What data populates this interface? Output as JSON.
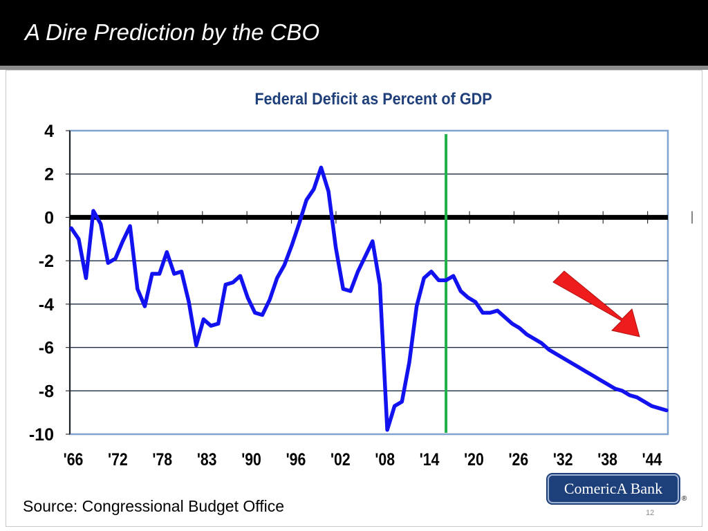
{
  "slide": {
    "title": "A Dire Prediction by the CBO",
    "source": "Source: Congressional Budget Office",
    "page_number": "12",
    "logo_text": "ComericA Bank",
    "logo_registered": "®"
  },
  "colors": {
    "line": "#1212f0",
    "zero_line": "#000000",
    "divider": "#22b04b",
    "arrow": "#ee1c1c",
    "axis_text": "#000000",
    "title_text": "#1f3f7a",
    "plot_border": "#7fa3cc",
    "grid": "#1a2a44"
  },
  "chart_data": {
    "type": "line",
    "title": "Federal Deficit as Percent of GDP",
    "xlabel": "",
    "ylabel": "",
    "ylim": [
      -10,
      4
    ],
    "xlim": [
      1965.8,
      2047.2
    ],
    "yticks": [
      4,
      2,
      0,
      -2,
      -4,
      -6,
      -8,
      -10
    ],
    "xtick_labels": [
      "'66",
      "'72",
      "'78",
      "'83",
      "'90",
      "'96",
      "'02",
      "'08",
      "'14",
      "'20",
      "'26",
      "'32",
      "'38",
      "'44"
    ],
    "projection_start_year": 2017,
    "trend_arrow": "down-right",
    "series": [
      {
        "name": "Deficit % GDP",
        "x": [
          1966,
          1967,
          1968,
          1969,
          1970,
          1971,
          1972,
          1973,
          1974,
          1975,
          1976,
          1977,
          1978,
          1979,
          1980,
          1981,
          1982,
          1983,
          1984,
          1985,
          1986,
          1987,
          1988,
          1989,
          1990,
          1991,
          1992,
          1993,
          1994,
          1995,
          1996,
          1997,
          1998,
          1999,
          2000,
          2001,
          2002,
          2003,
          2004,
          2005,
          2006,
          2007,
          2008,
          2009,
          2010,
          2011,
          2012,
          2013,
          2014,
          2015,
          2016,
          2017,
          2018,
          2019,
          2020,
          2021,
          2022,
          2023,
          2024,
          2025,
          2026,
          2027,
          2028,
          2029,
          2030,
          2031,
          2032,
          2033,
          2034,
          2035,
          2036,
          2037,
          2038,
          2039,
          2040,
          2041,
          2042,
          2043,
          2044,
          2045,
          2046,
          2047
        ],
        "values": [
          -0.5,
          -1.0,
          -2.8,
          0.3,
          -0.3,
          -2.1,
          -1.9,
          -1.1,
          -0.4,
          -3.3,
          -4.1,
          -2.6,
          -2.6,
          -1.6,
          -2.6,
          -2.5,
          -3.9,
          -5.9,
          -4.7,
          -5.0,
          -4.9,
          -3.1,
          -3.0,
          -2.7,
          -3.7,
          -4.4,
          -4.5,
          -3.8,
          -2.8,
          -2.2,
          -1.3,
          -0.3,
          0.8,
          1.3,
          2.3,
          1.2,
          -1.4,
          -3.3,
          -3.4,
          -2.5,
          -1.8,
          -1.1,
          -3.1,
          -9.8,
          -8.7,
          -8.5,
          -6.7,
          -4.1,
          -2.8,
          -2.5,
          -2.9,
          -2.9,
          -2.7,
          -3.4,
          -3.7,
          -3.9,
          -4.4,
          -4.4,
          -4.3,
          -4.6,
          -4.9,
          -5.1,
          -5.4,
          -5.6,
          -5.8,
          -6.1,
          -6.3,
          -6.5,
          -6.7,
          -6.9,
          -7.1,
          -7.3,
          -7.5,
          -7.7,
          -7.9,
          -8.0,
          -8.2,
          -8.3,
          -8.5,
          -8.7,
          -8.8,
          -8.9
        ]
      }
    ]
  }
}
